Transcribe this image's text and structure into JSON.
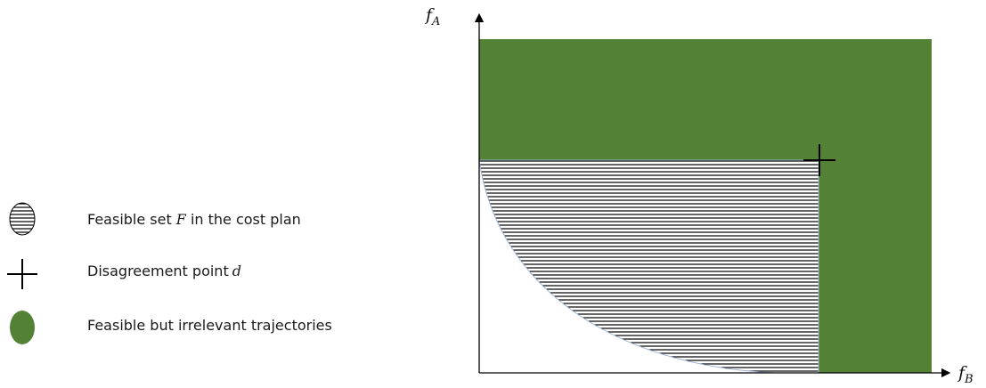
{
  "axes": {
    "y_label": "f",
    "y_label_sub": "A",
    "x_label": "f",
    "x_label_sub": "B"
  },
  "legend": {
    "items": [
      {
        "text": "Feasible set",
        "math": "F",
        "suffix": " in the cost plan",
        "icon": "hatched-ellipse-icon"
      },
      {
        "text": "Disagreement point",
        "math": "d",
        "suffix": "",
        "icon": "cross-icon"
      },
      {
        "text": "Feasible but irrelevant trajectories",
        "math": "",
        "suffix": "",
        "icon": "green-ellipse-icon"
      }
    ]
  },
  "colors": {
    "green": "#538135",
    "hatch": "#000000",
    "axis": "#000000"
  }
}
